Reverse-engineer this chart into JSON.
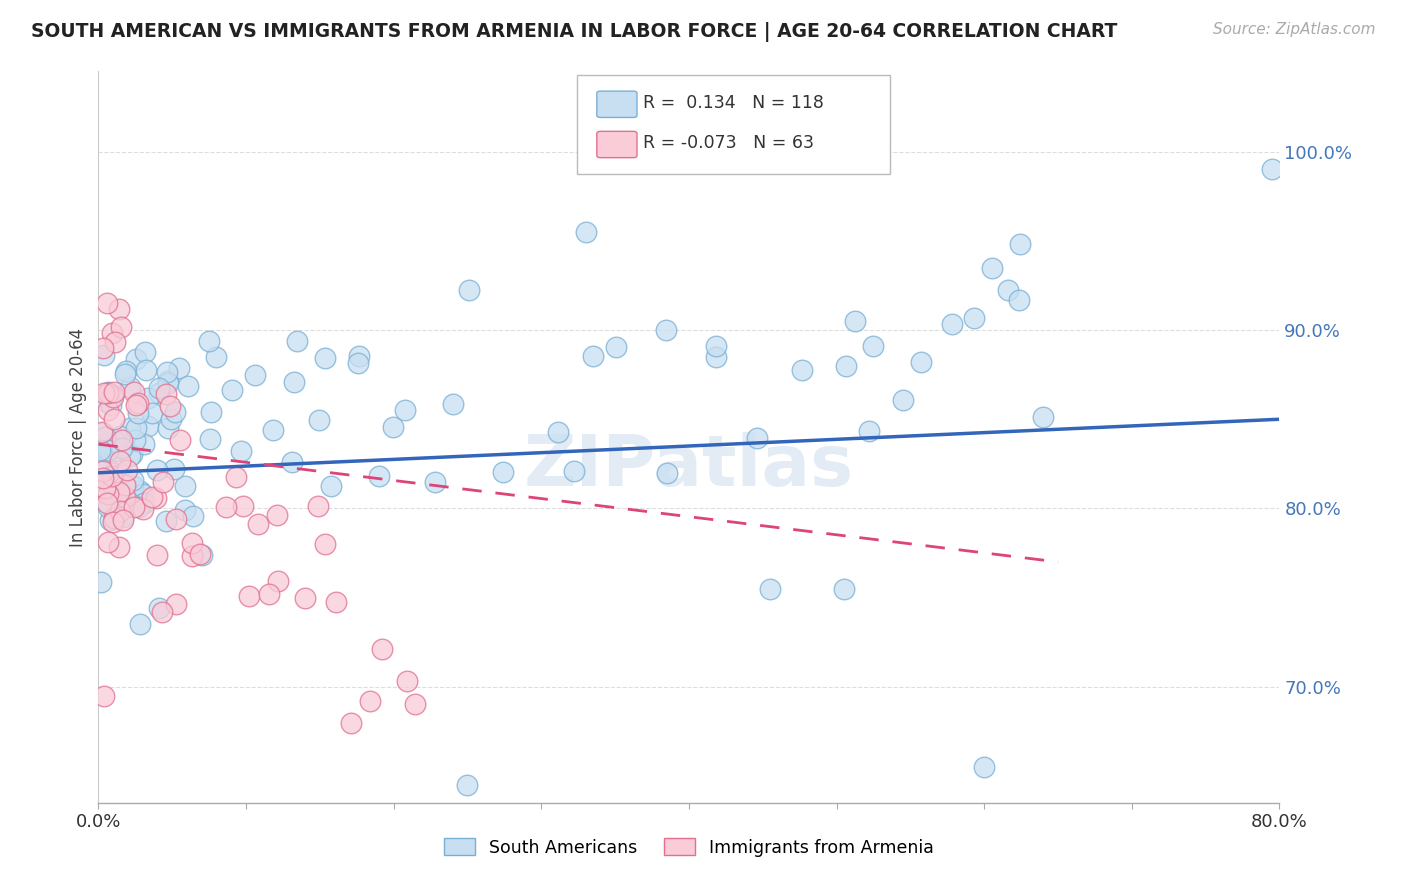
{
  "title": "SOUTH AMERICAN VS IMMIGRANTS FROM ARMENIA IN LABOR FORCE | AGE 20-64 CORRELATION CHART",
  "source": "Source: ZipAtlas.com",
  "ylabel": "In Labor Force | Age 20-64",
  "y_ticks": [
    0.7,
    0.8,
    0.9,
    1.0
  ],
  "y_tick_labels": [
    "70.0%",
    "80.0%",
    "90.0%",
    "100.0%"
  ],
  "x_min": 0.0,
  "x_max": 0.8,
  "y_min": 0.635,
  "y_max": 1.045,
  "blue_R": 0.134,
  "blue_N": 118,
  "pink_R": -0.073,
  "pink_N": 63,
  "blue_color": "#c8dff2",
  "blue_edge_color": "#7aafd4",
  "pink_color": "#f9ccd8",
  "pink_edge_color": "#e07090",
  "blue_line_color": "#3366bb",
  "pink_line_color": "#dd4477",
  "watermark": "ZIPatlas",
  "legend_blue_label": "South Americans",
  "legend_pink_label": "Immigrants from Armenia",
  "blue_trend_x0": 0.0,
  "blue_trend_y0": 0.82,
  "blue_trend_x1": 0.8,
  "blue_trend_y1": 0.85,
  "pink_trend_x0": 0.0,
  "pink_trend_y0": 0.836,
  "pink_trend_x1": 0.65,
  "pink_trend_y1": 0.77
}
